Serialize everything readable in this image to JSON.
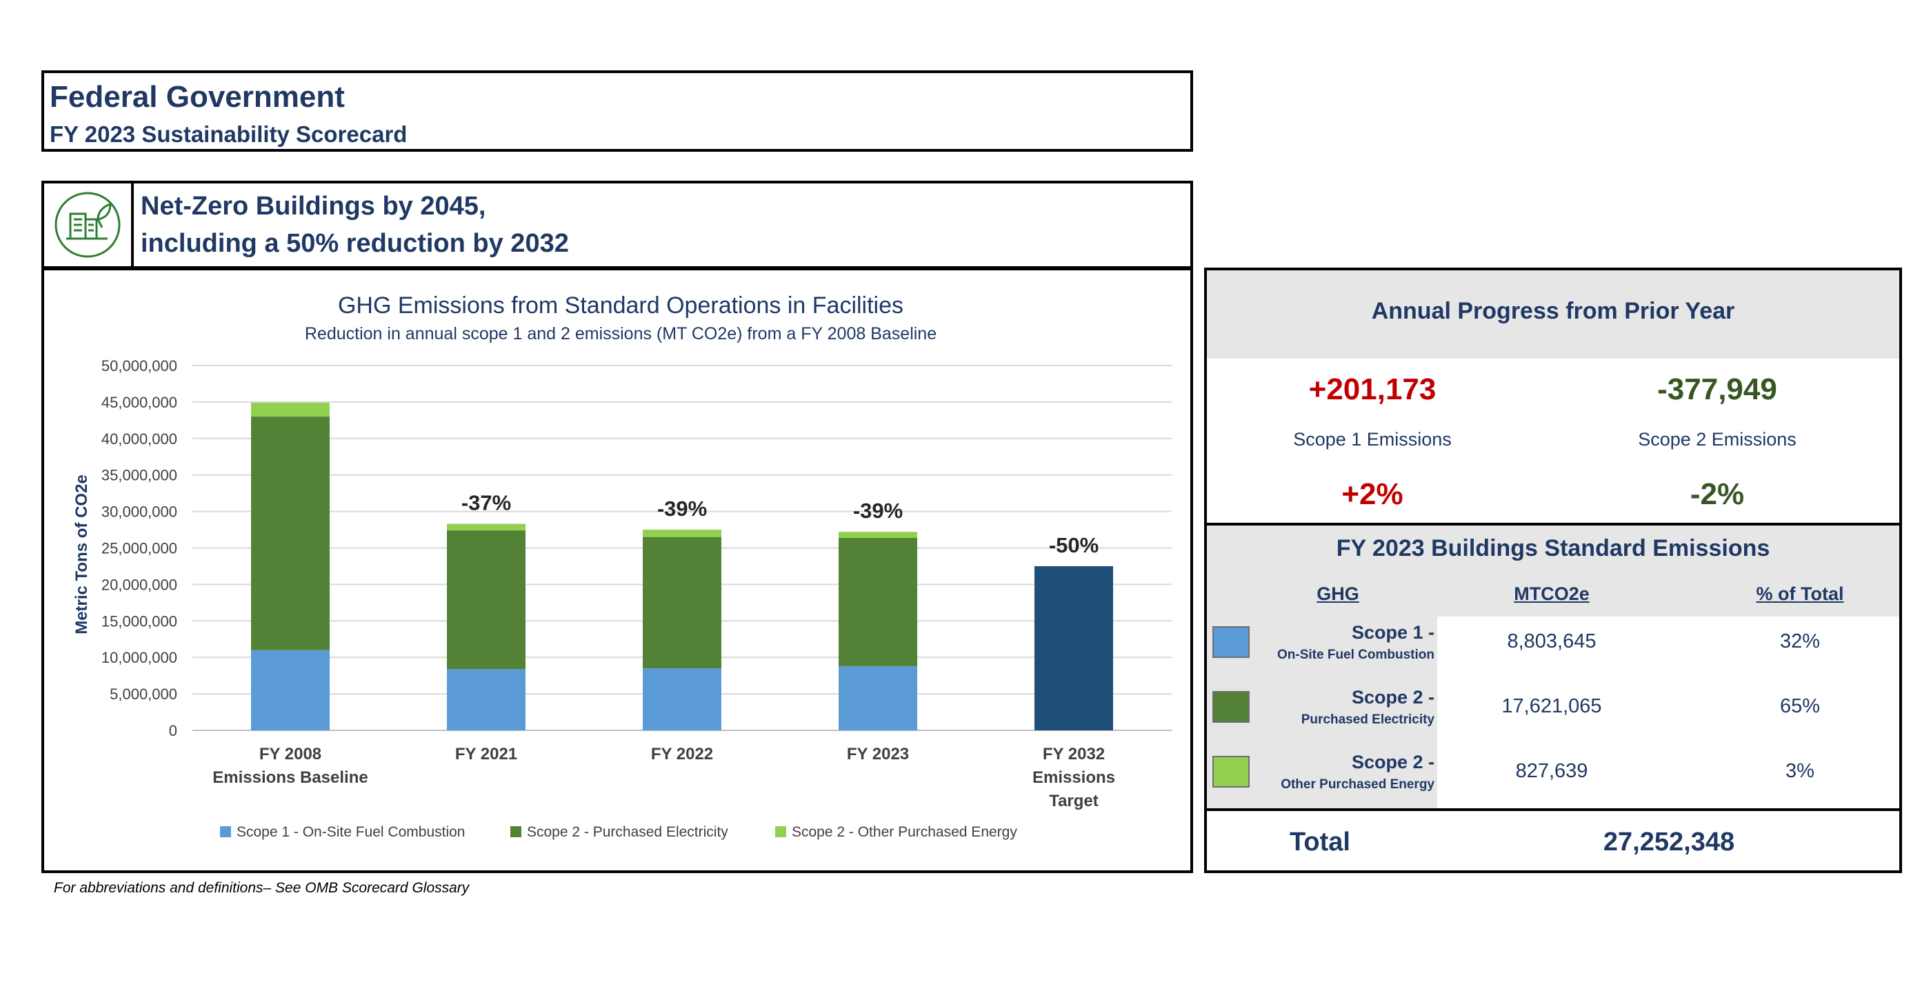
{
  "header": {
    "title": "Federal Government",
    "subtitle": "FY 2023 Sustainability Scorecard"
  },
  "goal": {
    "icon": "building-leaf-icon",
    "line1": "Net-Zero Buildings by 2045,",
    "line2": "including a 50% reduction by 2032"
  },
  "colors": {
    "scope1": "#5b9bd5",
    "scope2_elec": "#538135",
    "scope2_other": "#92d050",
    "target": "#1f4e79",
    "increase": "#c00000",
    "decrease": "#375623"
  },
  "chart_data": {
    "type": "bar",
    "stacked": true,
    "title": "GHG Emissions from Standard Operations in Facilities",
    "subtitle": "Reduction in annual scope 1 and 2 emissions (MT CO2e) from a FY 2008 Baseline",
    "ylabel": "Metric Tons of CO2e",
    "ylim": [
      0,
      50000000
    ],
    "yticks": [
      "0",
      "5,000,000",
      "10,000,000",
      "15,000,000",
      "20,000,000",
      "25,000,000",
      "30,000,000",
      "35,000,000",
      "40,000,000",
      "45,000,000",
      "50,000,000"
    ],
    "grid": true,
    "legend_position": "bottom",
    "categories": [
      [
        "FY 2008",
        "Emissions Baseline"
      ],
      [
        "FY 2021"
      ],
      [
        "FY 2022"
      ],
      [
        "FY 2023"
      ],
      [
        "FY 2032",
        "Emissions",
        "Target"
      ]
    ],
    "series": [
      {
        "name": "Scope 1 - On-Site Fuel Combustion",
        "color": "#5b9bd5",
        "values": [
          11000000,
          8400000,
          8500000,
          8800000,
          0
        ]
      },
      {
        "name": "Scope 2 - Purchased Electricity",
        "color": "#538135",
        "values": [
          32000000,
          19000000,
          18000000,
          17600000,
          0
        ]
      },
      {
        "name": "Scope 2 - Other Purchased Energy",
        "color": "#92d050",
        "values": [
          1900000,
          900000,
          1000000,
          800000,
          0
        ]
      }
    ],
    "target": {
      "category_index": 4,
      "value": 22500000,
      "color": "#1f4e79"
    },
    "bar_labels": [
      "",
      "-37%",
      "-39%",
      "-39%",
      "-50%"
    ]
  },
  "progress": {
    "title": "Annual Progress from Prior Year",
    "scope1": {
      "value": "+201,173",
      "label": "Scope 1 Emissions",
      "percent": "+2%"
    },
    "scope2": {
      "value": "-377,949",
      "label": "Scope 2 Emissions",
      "percent": "-2%"
    }
  },
  "emissions": {
    "title": "FY 2023 Buildings Standard Emissions",
    "headers": {
      "ghg": "GHG",
      "mtco2e": "MTCO2e",
      "pct": "% of Total"
    },
    "rows": [
      {
        "name": "Scope 1 -",
        "detail": "On-Site Fuel Combustion",
        "mtco2e": "8,803,645",
        "pct": "32%",
        "color": "#5b9bd5"
      },
      {
        "name": "Scope 2 -",
        "detail": "Purchased Electricity",
        "mtco2e": "17,621,065",
        "pct": "65%",
        "color": "#538135"
      },
      {
        "name": "Scope 2 -",
        "detail": "Other Purchased Energy",
        "mtco2e": "827,639",
        "pct": "3%",
        "color": "#92d050"
      }
    ],
    "total_label": "Total",
    "total_value": "27,252,348"
  },
  "footnote": "For abbreviations and definitions– See OMB Scorecard Glossary"
}
